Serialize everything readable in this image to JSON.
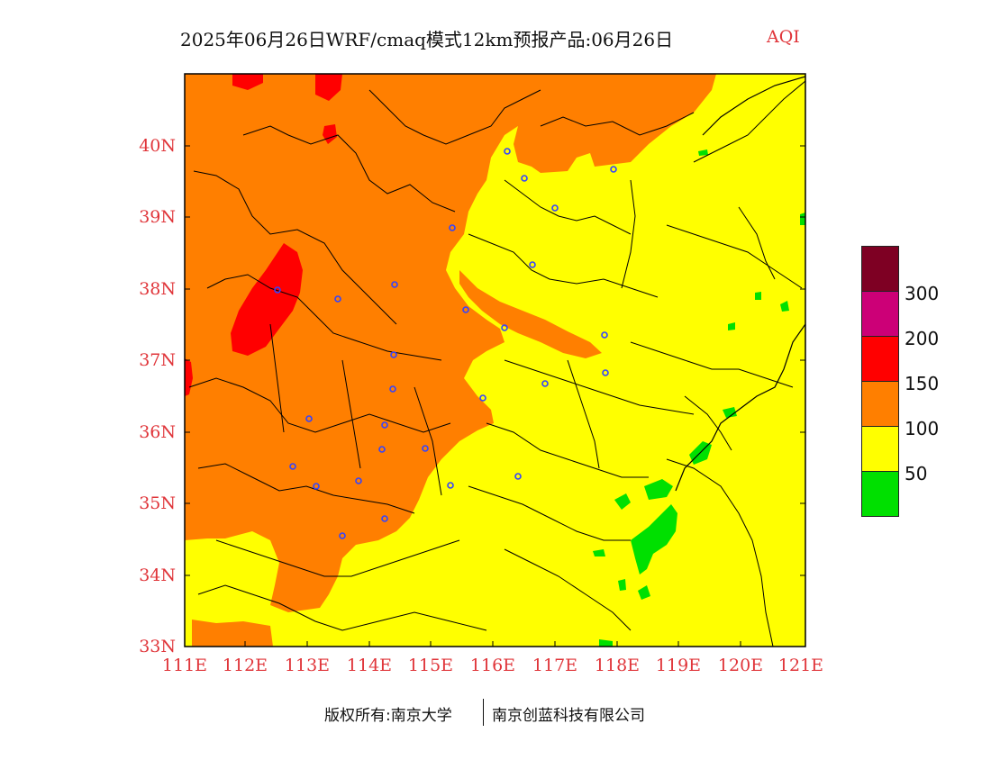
{
  "title": {
    "text": "2025年06月26日WRF/cmaq模式12km预报产品:06月26日",
    "product": "AQI"
  },
  "map": {
    "lat_labels": [
      "40N",
      "39N",
      "38N",
      "37N",
      "36N",
      "35N",
      "34N",
      "33N"
    ],
    "lon_labels": [
      "111E",
      "112E",
      "113E",
      "114E",
      "115E",
      "116E",
      "117E",
      "118E",
      "119E",
      "120E",
      "121E"
    ],
    "colors": {
      "good": "#00e000",
      "moderate": "#ffff00",
      "unhealthy_sensitive": "#ff7f00",
      "unhealthy": "#ff0000",
      "very_unhealthy": "#cc0077",
      "hazardous": "#7e0023",
      "station_marker": "#3344ff",
      "boundary": "#000000"
    }
  },
  "legend": {
    "labels": [
      "300",
      "200",
      "150",
      "100",
      "50"
    ],
    "colors": [
      "#7e0023",
      "#cc0077",
      "#ff0000",
      "#ff7f00",
      "#ffff00",
      "#00e000"
    ]
  },
  "footer": {
    "copyright": "版权所有:南京大学",
    "company": "南京创蓝科技有限公司"
  }
}
